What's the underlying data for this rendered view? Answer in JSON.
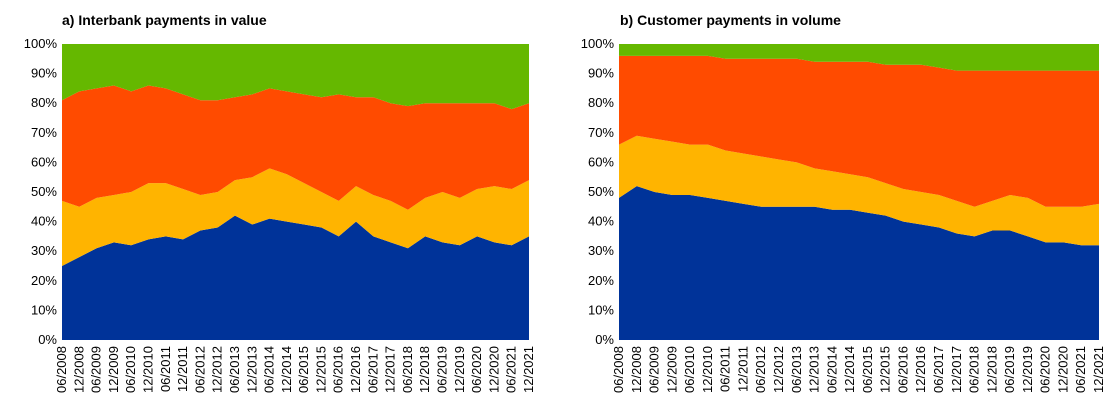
{
  "chart_data": [
    {
      "type": "area",
      "title": "a) Interbank payments in value",
      "categories": [
        "06/2008",
        "12/2008",
        "06/2009",
        "12/2009",
        "06/2010",
        "12/2010",
        "06/2011",
        "12/2011",
        "06/2012",
        "12/2012",
        "06/2013",
        "12/2013",
        "06/2014",
        "12/2014",
        "06/2015",
        "12/2015",
        "06/2016",
        "12/2016",
        "06/2017",
        "12/2017",
        "06/2018",
        "12/2018",
        "06/2019",
        "12/2019",
        "06/2020",
        "12/2020",
        "06/2021",
        "12/2021"
      ],
      "series": [
        {
          "color": "#003399",
          "values": [
            25,
            28,
            31,
            33,
            32,
            34,
            35,
            34,
            37,
            38,
            42,
            39,
            41,
            40,
            39,
            38,
            35,
            40,
            35,
            33,
            31,
            35,
            33,
            32,
            35,
            33,
            32,
            35
          ]
        },
        {
          "color": "#FFB400",
          "values": [
            22,
            17,
            17,
            16,
            18,
            19,
            18,
            17,
            12,
            12,
            12,
            16,
            17,
            16,
            14,
            12,
            12,
            12,
            14,
            14,
            13,
            13,
            17,
            16,
            16,
            19,
            19,
            19
          ]
        },
        {
          "color": "#FF4B00",
          "values": [
            34,
            39,
            37,
            37,
            34,
            33,
            32,
            32,
            32,
            31,
            28,
            28,
            27,
            28,
            30,
            32,
            36,
            30,
            33,
            33,
            35,
            32,
            30,
            32,
            29,
            28,
            27,
            26
          ]
        },
        {
          "color": "#65B800",
          "values": [
            19,
            16,
            15,
            14,
            16,
            14,
            15,
            17,
            19,
            19,
            18,
            17,
            15,
            16,
            17,
            18,
            17,
            18,
            18,
            20,
            21,
            20,
            20,
            20,
            20,
            20,
            22,
            20
          ]
        }
      ],
      "ylim": [
        0,
        100
      ],
      "yticks": [
        {
          "value": 0,
          "label": "0%"
        },
        {
          "value": 10,
          "label": "10%"
        },
        {
          "value": 20,
          "label": "20%"
        },
        {
          "value": 30,
          "label": "30%"
        },
        {
          "value": 40,
          "label": "40%"
        },
        {
          "value": 50,
          "label": "50%"
        },
        {
          "value": 60,
          "label": "60%"
        },
        {
          "value": 70,
          "label": "70%"
        },
        {
          "value": 80,
          "label": "80%"
        },
        {
          "value": 90,
          "label": "90%"
        },
        {
          "value": 100,
          "label": "100%"
        }
      ]
    },
    {
      "type": "area",
      "title": "b) Customer payments in volume",
      "categories": [
        "06/2008",
        "12/2008",
        "06/2009",
        "12/2009",
        "06/2010",
        "12/2010",
        "06/2011",
        "12/2011",
        "06/2012",
        "12/2012",
        "06/2013",
        "12/2013",
        "06/2014",
        "12/2014",
        "06/2015",
        "12/2015",
        "06/2016",
        "12/2016",
        "06/2017",
        "12/2017",
        "06/2018",
        "12/2018",
        "06/2019",
        "12/2019",
        "06/2020",
        "12/2020",
        "06/2021",
        "12/2021"
      ],
      "series": [
        {
          "color": "#003399",
          "values": [
            48,
            52,
            50,
            49,
            49,
            48,
            47,
            46,
            45,
            45,
            45,
            45,
            44,
            44,
            43,
            42,
            40,
            39,
            38,
            36,
            35,
            37,
            37,
            35,
            33,
            33,
            32,
            32
          ]
        },
        {
          "color": "#FFB400",
          "values": [
            18,
            17,
            18,
            18,
            17,
            18,
            17,
            17,
            17,
            16,
            15,
            13,
            13,
            12,
            12,
            11,
            11,
            11,
            11,
            11,
            10,
            10,
            12,
            13,
            12,
            12,
            13,
            14
          ]
        },
        {
          "color": "#FF4B00",
          "values": [
            30,
            27,
            28,
            29,
            30,
            30,
            31,
            32,
            33,
            34,
            35,
            36,
            37,
            38,
            39,
            40,
            42,
            43,
            43,
            44,
            46,
            44,
            42,
            43,
            46,
            46,
            46,
            45
          ]
        },
        {
          "color": "#65B800",
          "values": [
            4,
            4,
            4,
            4,
            4,
            4,
            5,
            5,
            5,
            5,
            5,
            6,
            6,
            6,
            6,
            7,
            7,
            7,
            8,
            9,
            9,
            9,
            9,
            9,
            9,
            9,
            9,
            9
          ]
        }
      ],
      "ylim": [
        0,
        100
      ],
      "yticks": [
        {
          "value": 0,
          "label": "0%"
        },
        {
          "value": 10,
          "label": "10%"
        },
        {
          "value": 20,
          "label": "20%"
        },
        {
          "value": 30,
          "label": "30%"
        },
        {
          "value": 40,
          "label": "40%"
        },
        {
          "value": 50,
          "label": "50%"
        },
        {
          "value": 60,
          "label": "60%"
        },
        {
          "value": 70,
          "label": "70%"
        },
        {
          "value": 80,
          "label": "80%"
        },
        {
          "value": 90,
          "label": "90%"
        },
        {
          "value": 100,
          "label": "100%"
        }
      ]
    }
  ]
}
